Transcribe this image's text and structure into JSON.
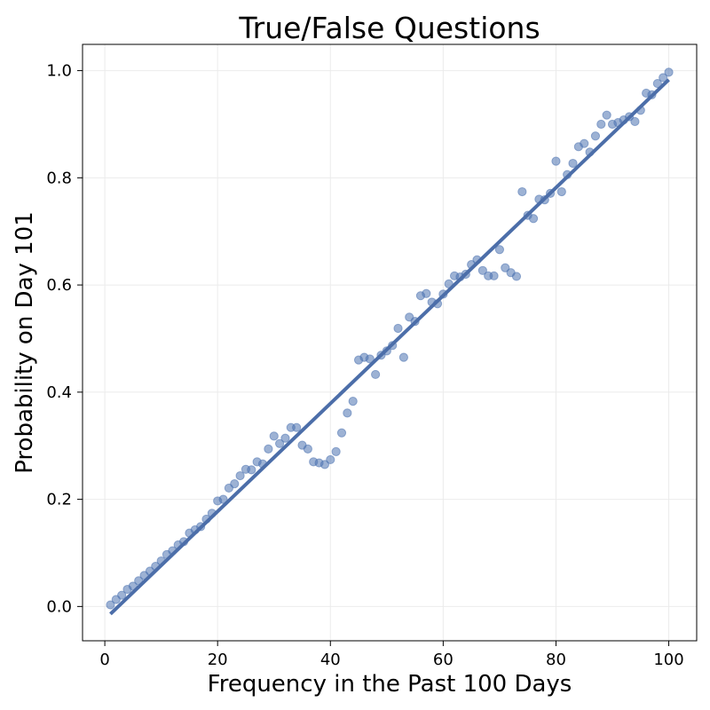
{
  "chart_data": {
    "type": "scatter",
    "title": "True/False Questions",
    "xlabel": "Frequency in the Past 100 Days",
    "ylabel": "Probability on Day 101",
    "xlim": [
      -3.95,
      104.95
    ],
    "ylim": [
      -0.064,
      1.049
    ],
    "xticks": [
      0,
      20,
      40,
      60,
      80,
      100
    ],
    "yticks": [
      0.0,
      0.2,
      0.4,
      0.6,
      0.8,
      1.0
    ],
    "xtick_labels": [
      "0",
      "20",
      "40",
      "60",
      "80",
      "100"
    ],
    "ytick_labels": [
      "0.0",
      "0.2",
      "0.4",
      "0.6",
      "0.8",
      "1.0"
    ],
    "grid": true,
    "legend": "none",
    "colors": {
      "points": "#4c72b0",
      "fit_line": "#4c6ea9",
      "grid": "#ebebeb",
      "axes": "#000000"
    },
    "series": [
      {
        "kind": "points",
        "x": [
          1,
          2,
          3,
          4,
          5,
          6,
          7,
          8,
          9,
          10,
          11,
          12,
          13,
          14,
          15,
          16,
          17,
          18,
          19,
          20,
          21,
          22,
          23,
          24,
          25,
          26,
          27,
          28,
          29,
          30,
          31,
          32,
          33,
          34,
          35,
          36,
          37,
          38,
          39,
          40,
          41,
          42,
          43,
          44,
          45,
          46,
          47,
          48,
          49,
          50,
          51,
          52,
          53,
          54,
          55,
          56,
          57,
          58,
          59,
          60,
          61,
          62,
          63,
          64,
          65,
          66,
          67,
          68,
          69,
          70,
          71,
          72,
          73,
          74,
          75,
          76,
          77,
          78,
          79,
          80,
          81,
          82,
          83,
          84,
          85,
          86,
          87,
          88,
          89,
          90,
          91,
          92,
          93,
          94,
          95,
          96,
          97,
          98,
          99,
          100
        ],
        "y": [
          0.003,
          0.013,
          0.021,
          0.032,
          0.038,
          0.048,
          0.058,
          0.066,
          0.075,
          0.085,
          0.097,
          0.104,
          0.115,
          0.121,
          0.137,
          0.143,
          0.149,
          0.163,
          0.174,
          0.197,
          0.2,
          0.221,
          0.229,
          0.244,
          0.256,
          0.255,
          0.27,
          0.266,
          0.294,
          0.318,
          0.304,
          0.314,
          0.334,
          0.334,
          0.301,
          0.294,
          0.27,
          0.268,
          0.265,
          0.274,
          0.289,
          0.324,
          0.361,
          0.383,
          0.46,
          0.465,
          0.462,
          0.433,
          0.469,
          0.477,
          0.487,
          0.519,
          0.465,
          0.54,
          0.532,
          0.58,
          0.584,
          0.568,
          0.565,
          0.583,
          0.602,
          0.617,
          0.615,
          0.62,
          0.638,
          0.647,
          0.627,
          0.617,
          0.617,
          0.666,
          0.632,
          0.623,
          0.616,
          0.774,
          0.73,
          0.724,
          0.76,
          0.759,
          0.771,
          0.831,
          0.774,
          0.806,
          0.827,
          0.858,
          0.864,
          0.848,
          0.878,
          0.9,
          0.917,
          0.9,
          0.903,
          0.908,
          0.914,
          0.905,
          0.926,
          0.958,
          0.955,
          0.976,
          0.987,
          0.997
        ]
      },
      {
        "kind": "fit_line",
        "x": [
          1,
          100
        ],
        "y": [
          -0.014,
          0.983
        ]
      }
    ]
  }
}
